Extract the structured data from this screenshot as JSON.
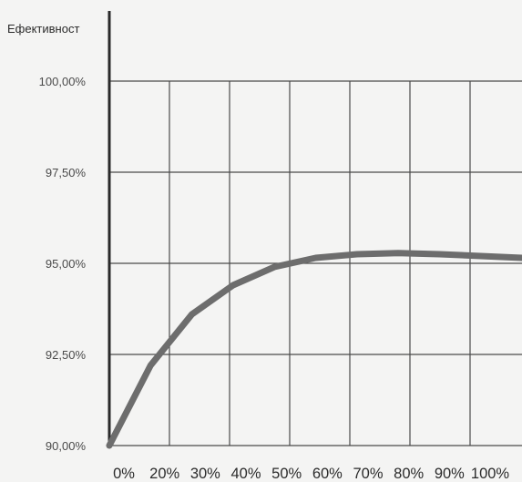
{
  "chart_data": {
    "type": "line",
    "title": "",
    "ylabel": "Ефективност",
    "xlabel": "",
    "x_tick_labels": [
      "0%",
      "20%",
      "30%",
      "40%",
      "50%",
      "60%",
      "70%",
      "80%",
      "90%",
      "100%"
    ],
    "x_range": [
      0,
      100
    ],
    "ylim": [
      90.0,
      100.0
    ],
    "y_ticks": [
      90.0,
      92.5,
      95.0,
      97.5,
      100.0
    ],
    "y_tick_labels": [
      "90,00%",
      "92,50%",
      "95,00%",
      "97,50%",
      "100,00%"
    ],
    "grid": true,
    "series": [
      {
        "points": [
          {
            "x": 0,
            "y": 90.0
          },
          {
            "x": 10,
            "y": 92.2
          },
          {
            "x": 20,
            "y": 93.6
          },
          {
            "x": 30,
            "y": 94.4
          },
          {
            "x": 40,
            "y": 94.9
          },
          {
            "x": 50,
            "y": 95.15
          },
          {
            "x": 60,
            "y": 95.25
          },
          {
            "x": 70,
            "y": 95.28
          },
          {
            "x": 80,
            "y": 95.25
          },
          {
            "x": 90,
            "y": 95.2
          },
          {
            "x": 100,
            "y": 95.15
          }
        ],
        "color": "#6d6d6d"
      }
    ],
    "colors": {
      "grid": "#4a4a4a",
      "axis": "#2a2a2a",
      "line": "#6d6d6d"
    }
  }
}
